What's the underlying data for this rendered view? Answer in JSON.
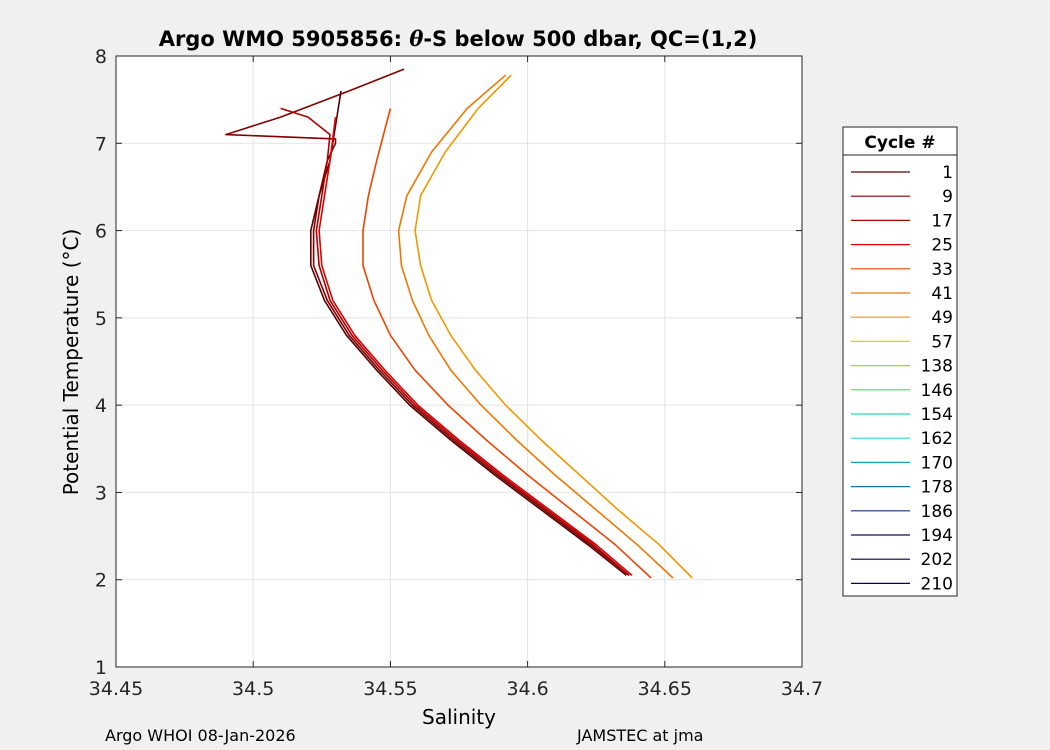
{
  "chart_data": {
    "type": "line",
    "title_prefix": "Argo WMO 5905856: ",
    "title_symbol": "θ",
    "title_suffix": "-S below 500 dbar,  QC=(1,2)",
    "xlabel": "Salinity",
    "ylabel": "Potential Temperature (°C)",
    "xlim": [
      34.45,
      34.7
    ],
    "ylim": [
      1,
      8
    ],
    "xticks": [
      "34.45",
      "34.5",
      "34.55",
      "34.6",
      "34.65",
      "34.7"
    ],
    "yticks": [
      "1",
      "2",
      "3",
      "4",
      "5",
      "6",
      "7",
      "8"
    ],
    "grid": true,
    "legend_title": "Cycle #",
    "legend_position": "right",
    "series": [
      {
        "name": "1",
        "color": "#5a0000",
        "x": [
          34.636,
          34.622,
          34.605,
          34.588,
          34.572,
          34.557,
          34.545,
          34.534,
          34.526,
          34.521,
          34.521,
          34.524,
          34.528,
          34.532
        ],
        "y": [
          2.05,
          2.4,
          2.8,
          3.2,
          3.6,
          4.0,
          4.4,
          4.8,
          5.2,
          5.6,
          6.0,
          6.4,
          6.8,
          7.6
        ]
      },
      {
        "name": "9",
        "color": "#800000",
        "x": [
          34.637,
          34.623,
          34.606,
          34.589,
          34.573,
          34.558,
          34.546,
          34.535,
          34.527,
          34.522,
          34.522,
          34.524,
          34.527,
          34.53,
          34.53,
          34.49,
          34.51,
          34.535,
          34.555
        ],
        "y": [
          2.05,
          2.4,
          2.8,
          3.2,
          3.6,
          4.0,
          4.4,
          4.8,
          5.2,
          5.6,
          6.0,
          6.4,
          6.8,
          7.0,
          7.05,
          7.1,
          7.3,
          7.6,
          7.85
        ]
      },
      {
        "name": "17",
        "color": "#aa0000",
        "x": [
          34.637,
          34.624,
          34.607,
          34.59,
          34.574,
          34.559,
          34.547,
          34.536,
          34.528,
          34.524,
          34.523,
          34.525,
          34.527,
          34.528,
          34.52,
          34.51
        ],
        "y": [
          2.05,
          2.4,
          2.8,
          3.2,
          3.6,
          4.0,
          4.4,
          4.8,
          5.2,
          5.6,
          6.0,
          6.4,
          6.8,
          7.1,
          7.3,
          7.4
        ]
      },
      {
        "name": "25",
        "color": "#dd0000",
        "x": [
          34.638,
          34.625,
          34.608,
          34.591,
          34.575,
          34.56,
          34.548,
          34.537,
          34.529,
          34.525,
          34.524,
          34.526,
          34.528,
          34.53
        ],
        "y": [
          2.05,
          2.4,
          2.8,
          3.2,
          3.6,
          4.0,
          4.4,
          4.8,
          5.2,
          5.6,
          6.0,
          6.4,
          6.8,
          7.3
        ]
      },
      {
        "name": "33",
        "color": "#ee4400",
        "x": [
          34.645,
          34.632,
          34.616,
          34.6,
          34.585,
          34.571,
          34.559,
          34.55,
          34.544,
          34.54,
          34.54,
          34.542,
          34.545,
          34.55
        ],
        "y": [
          2.02,
          2.4,
          2.8,
          3.2,
          3.6,
          4.0,
          4.4,
          4.8,
          5.2,
          5.6,
          6.0,
          6.4,
          6.8,
          7.4
        ]
      },
      {
        "name": "41",
        "color": "#ee7700",
        "x": [
          34.653,
          34.64,
          34.625,
          34.61,
          34.596,
          34.583,
          34.572,
          34.564,
          34.558,
          34.554,
          34.553,
          34.556,
          34.565,
          34.578,
          34.592
        ],
        "y": [
          2.02,
          2.4,
          2.8,
          3.2,
          3.6,
          4.0,
          4.4,
          4.8,
          5.2,
          5.6,
          6.0,
          6.4,
          6.9,
          7.4,
          7.78
        ]
      },
      {
        "name": "49",
        "color": "#ee9900",
        "x": [
          34.66,
          34.648,
          34.633,
          34.619,
          34.605,
          34.592,
          34.581,
          34.572,
          34.565,
          34.561,
          34.559,
          34.561,
          34.57,
          34.582,
          34.594
        ],
        "y": [
          2.02,
          2.4,
          2.8,
          3.2,
          3.6,
          4.0,
          4.4,
          4.8,
          5.2,
          5.6,
          6.0,
          6.4,
          6.9,
          7.4,
          7.78
        ]
      },
      {
        "name": "57",
        "color": "#d6d600",
        "x": [],
        "y": []
      },
      {
        "name": "138",
        "color": "#88dd44",
        "x": [],
        "y": []
      },
      {
        "name": "146",
        "color": "#44dd66",
        "x": [],
        "y": []
      },
      {
        "name": "154",
        "color": "#22ddaa",
        "x": [],
        "y": []
      },
      {
        "name": "162",
        "color": "#22dddd",
        "x": [],
        "y": []
      },
      {
        "name": "170",
        "color": "#11aaaa",
        "x": [],
        "y": []
      },
      {
        "name": "178",
        "color": "#117799",
        "x": [],
        "y": []
      },
      {
        "name": "186",
        "color": "#113377",
        "x": [],
        "y": []
      },
      {
        "name": "194",
        "color": "#111155",
        "x": [],
        "y": []
      },
      {
        "name": "202",
        "color": "#000033",
        "x": [],
        "y": []
      },
      {
        "name": "210",
        "color": "#000066",
        "x": [],
        "y": []
      }
    ]
  },
  "footer": {
    "left": "Argo WHOI 08-Jan-2026",
    "right": "JAMSTEC at jma"
  }
}
